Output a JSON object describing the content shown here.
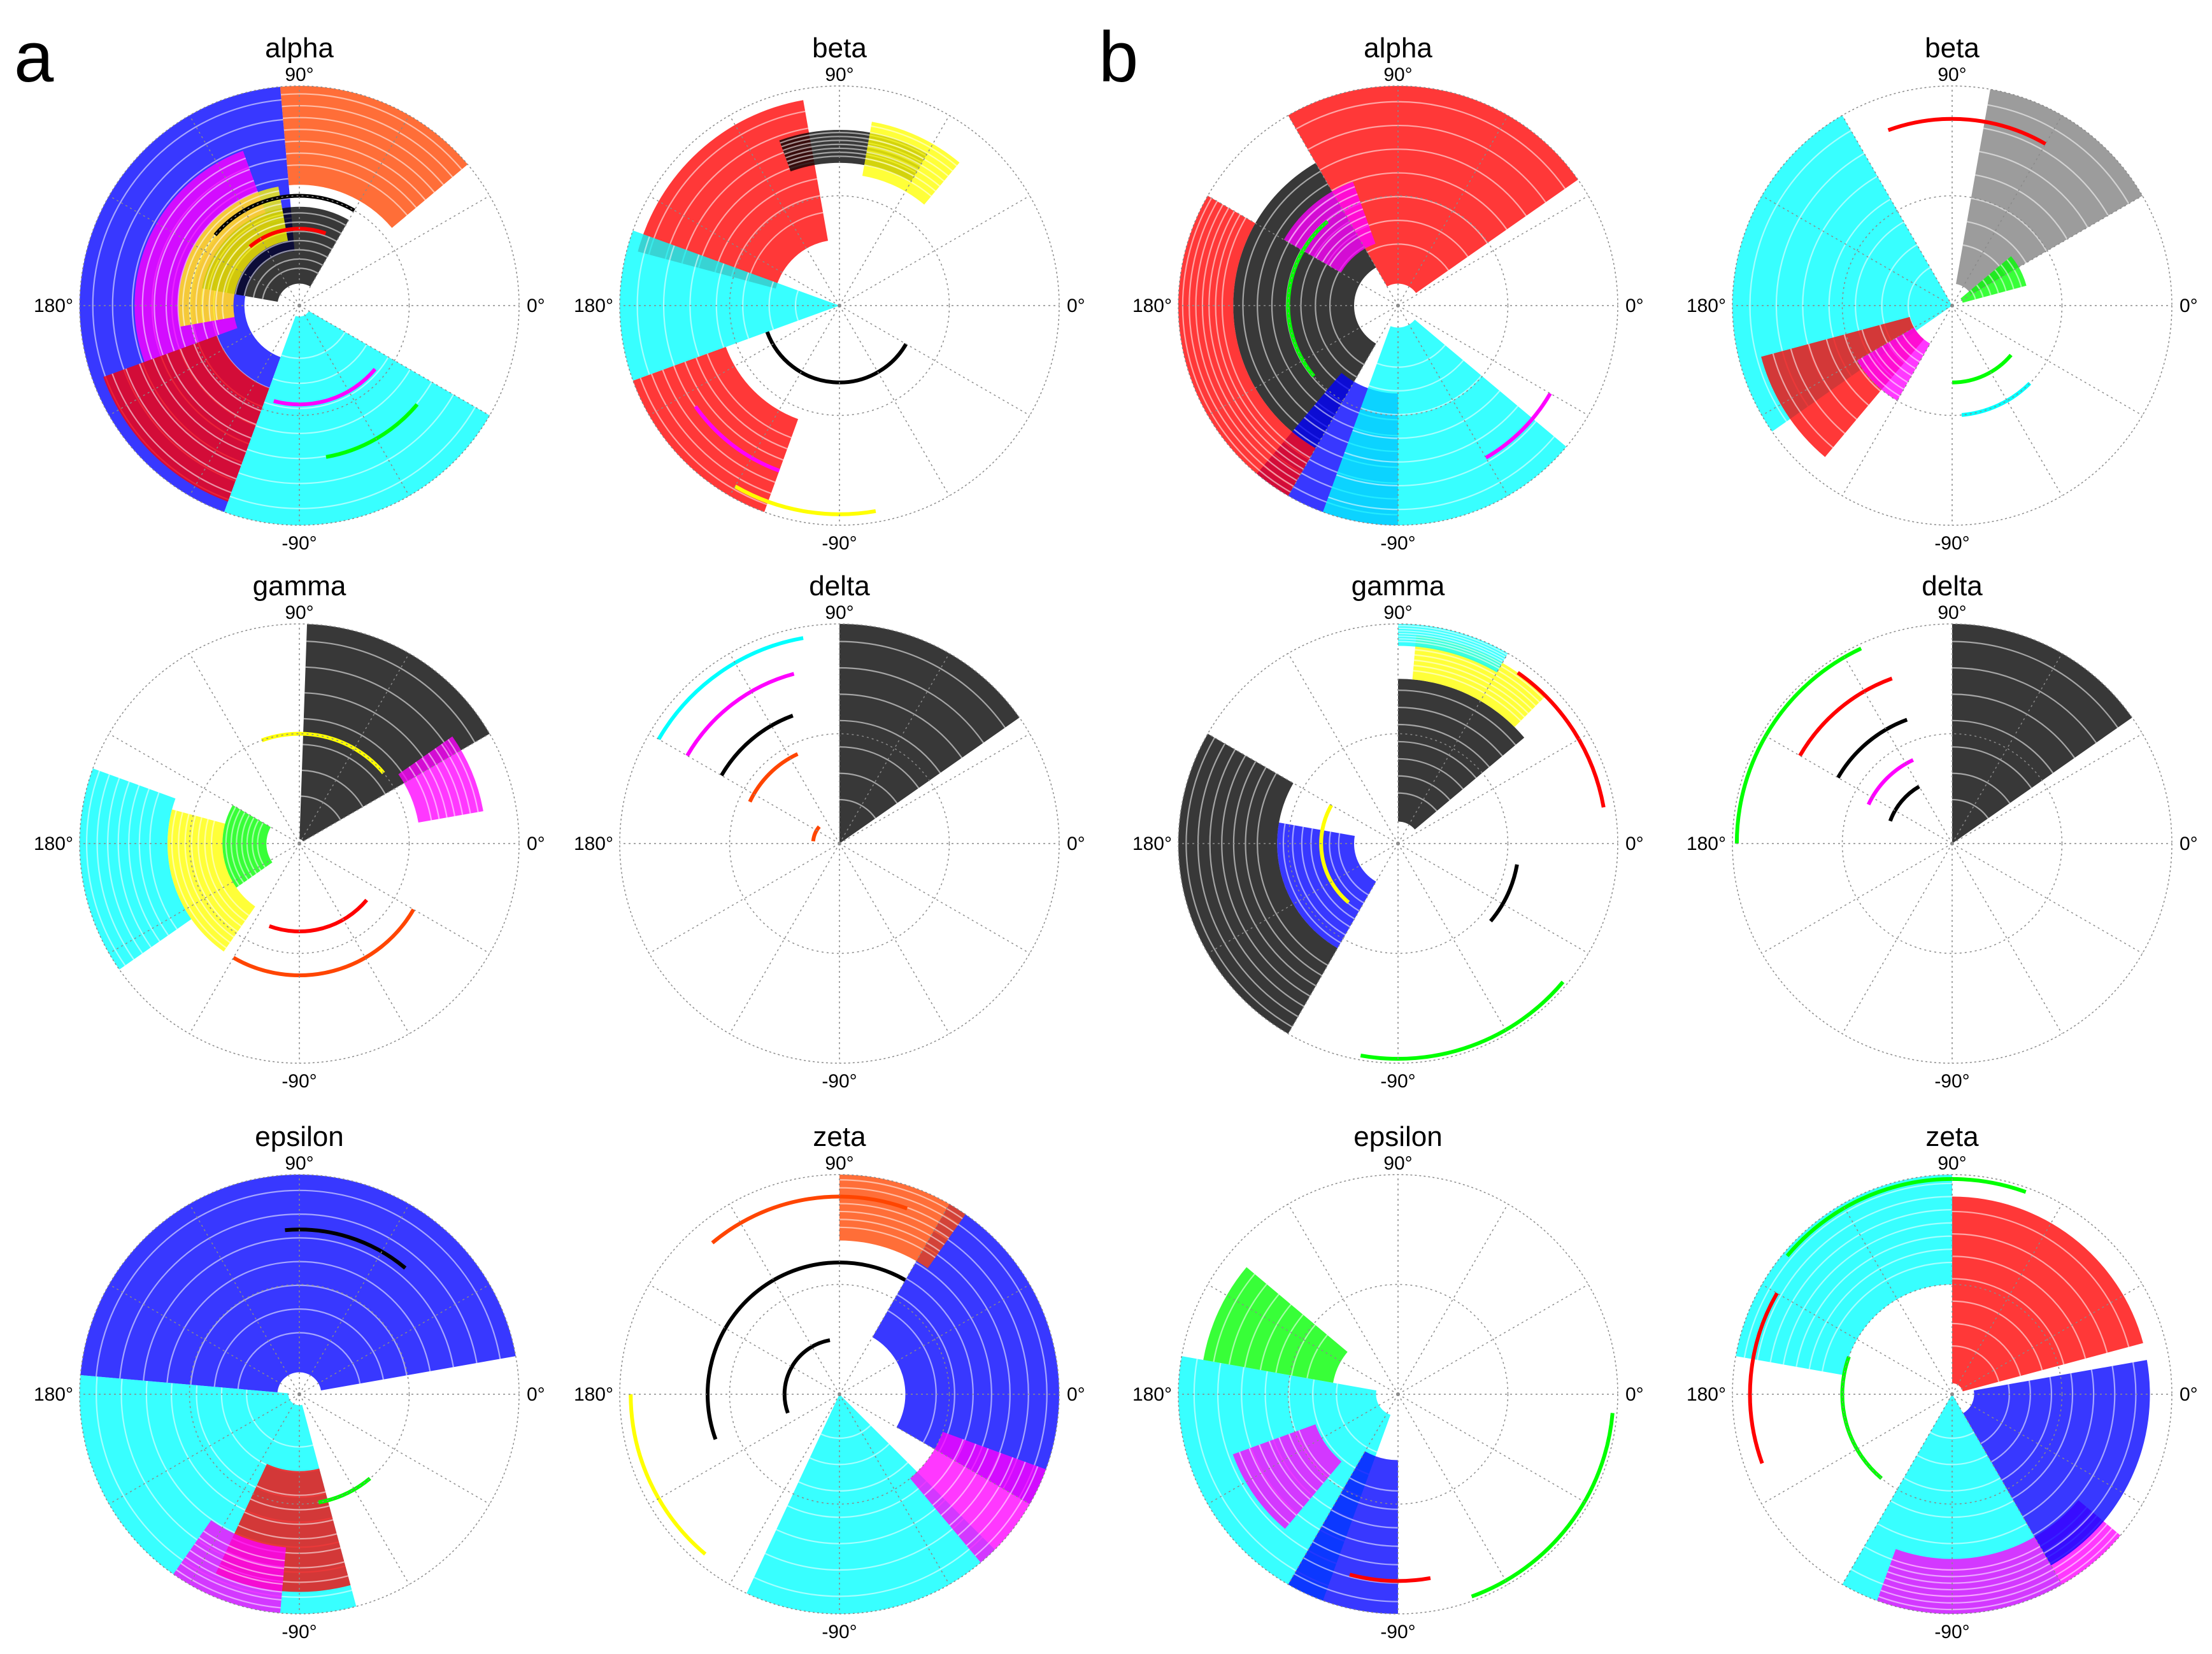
{
  "panels": [
    {
      "letter": "a"
    },
    {
      "letter": "b"
    }
  ],
  "angle_labels": {
    "top": "90°",
    "left": "180°",
    "right": "0°",
    "bottom": "-90°"
  },
  "chart_data": [
    {
      "type": "scatter",
      "title": "alpha",
      "projection": "polar",
      "grid": true,
      "angle_ticks": [
        "90°",
        "180°",
        "0°",
        "-90°"
      ],
      "sectors": [
        {
          "color": "#0000ff",
          "start": 95,
          "end": 250,
          "r_min": 0.25,
          "r_max": 1.0
        },
        {
          "color": "#ff4500",
          "start": 40,
          "end": 95,
          "r_min": 0.55,
          "r_max": 1.0
        },
        {
          "color": "#ff00ff",
          "start": 110,
          "end": 200,
          "r_min": 0.3,
          "r_max": 0.75
        },
        {
          "color": "#00ffff",
          "start": 250,
          "end": 330,
          "r_min": 0.05,
          "r_max": 1.0
        },
        {
          "color": "#000000",
          "start": 60,
          "end": 170,
          "r_min": 0.1,
          "r_max": 0.45
        },
        {
          "color": "#ffff00",
          "start": 100,
          "end": 190,
          "r_min": 0.3,
          "r_max": 0.55
        },
        {
          "color": "#ff0000",
          "start": 200,
          "end": 250,
          "r_min": 0.4,
          "r_max": 0.95
        }
      ],
      "arcs": [
        {
          "color": "#000000",
          "start": 60,
          "end": 140,
          "r": 0.5
        },
        {
          "color": "#ff0000",
          "start": 70,
          "end": 130,
          "r": 0.35
        },
        {
          "color": "#ff00ff",
          "start": 255,
          "end": 320,
          "r": 0.45
        },
        {
          "color": "#00ff00",
          "start": 280,
          "end": 320,
          "r": 0.7
        }
      ]
    },
    {
      "type": "scatter",
      "title": "beta",
      "projection": "polar",
      "grid": true,
      "angle_ticks": [
        "90°",
        "180°",
        "0°",
        "-90°"
      ],
      "sectors": [
        {
          "color": "#ff0000",
          "start": 100,
          "end": 165,
          "r_min": 0.3,
          "r_max": 0.95
        },
        {
          "color": "#00ffff",
          "start": 160,
          "end": 200,
          "r_min": 0.0,
          "r_max": 1.0
        },
        {
          "color": "#000000",
          "start": 60,
          "end": 110,
          "r_min": 0.65,
          "r_max": 0.8
        },
        {
          "color": "#ffff00",
          "start": 50,
          "end": 80,
          "r_min": 0.6,
          "r_max": 0.85
        },
        {
          "color": "#ff0000",
          "start": 200,
          "end": 250,
          "r_min": 0.55,
          "r_max": 1.0
        }
      ],
      "arcs": [
        {
          "color": "#000000",
          "start": 200,
          "end": 330,
          "r": 0.35
        },
        {
          "color": "#ff00ff",
          "start": 215,
          "end": 250,
          "r": 0.8
        },
        {
          "color": "#ffff00",
          "start": 240,
          "end": 280,
          "r": 0.95
        }
      ]
    },
    {
      "type": "scatter",
      "title": "gamma",
      "projection": "polar",
      "grid": true,
      "angle_ticks": [
        "90°",
        "180°",
        "0°",
        "-90°"
      ],
      "sectors": [
        {
          "color": "#000000",
          "start": 30,
          "end": 88,
          "r_min": 0.02,
          "r_max": 1.0
        },
        {
          "color": "#00ffff",
          "start": 160,
          "end": 215,
          "r_min": 0.6,
          "r_max": 1.0
        },
        {
          "color": "#ffff00",
          "start": 165,
          "end": 235,
          "r_min": 0.35,
          "r_max": 0.6
        },
        {
          "color": "#00ff00",
          "start": 150,
          "end": 215,
          "r_min": 0.15,
          "r_max": 0.35
        },
        {
          "color": "#ff00ff",
          "start": 10,
          "end": 35,
          "r_min": 0.55,
          "r_max": 0.85
        }
      ],
      "arcs": [
        {
          "color": "#ffff00",
          "start": 40,
          "end": 110,
          "r": 0.5
        },
        {
          "color": "#ff4500",
          "start": 240,
          "end": 330,
          "r": 0.6
        },
        {
          "color": "#ff0000",
          "start": 250,
          "end": 320,
          "r": 0.4
        }
      ]
    },
    {
      "type": "scatter",
      "title": "delta",
      "projection": "polar",
      "grid": true,
      "angle_ticks": [
        "90°",
        "180°",
        "0°",
        "-90°"
      ],
      "sectors": [
        {
          "color": "#000000",
          "start": 35,
          "end": 90,
          "r_min": 0.0,
          "r_max": 1.0
        }
      ],
      "arcs": [
        {
          "color": "#00ffff",
          "start": 100,
          "end": 150,
          "r": 0.95
        },
        {
          "color": "#ff00ff",
          "start": 105,
          "end": 150,
          "r": 0.8
        },
        {
          "color": "#000000",
          "start": 110,
          "end": 150,
          "r": 0.62
        },
        {
          "color": "#ff4500",
          "start": 115,
          "end": 155,
          "r": 0.45
        },
        {
          "color": "#ff4500",
          "start": 140,
          "end": 175,
          "r": 0.12
        }
      ]
    },
    {
      "type": "scatter",
      "title": "epsilon",
      "projection": "polar",
      "grid": true,
      "angle_ticks": [
        "90°",
        "180°",
        "0°",
        "-90°"
      ],
      "sectors": [
        {
          "color": "#0000ff",
          "start": 10,
          "end": 175,
          "r_min": 0.1,
          "r_max": 1.0
        },
        {
          "color": "#00ffff",
          "start": 175,
          "end": 285,
          "r_min": 0.05,
          "r_max": 1.0
        },
        {
          "color": "#ff0000",
          "start": 245,
          "end": 285,
          "r_min": 0.35,
          "r_max": 0.9
        },
        {
          "color": "#ff00ff",
          "start": 235,
          "end": 265,
          "r_min": 0.7,
          "r_max": 1.0
        }
      ],
      "arcs": [
        {
          "color": "#000000",
          "start": 50,
          "end": 95,
          "r": 0.75
        },
        {
          "color": "#00ff00",
          "start": 280,
          "end": 310,
          "r": 0.5
        }
      ]
    },
    {
      "type": "scatter",
      "title": "zeta",
      "projection": "polar",
      "grid": true,
      "angle_ticks": [
        "90°",
        "180°",
        "0°",
        "-90°"
      ],
      "sectors": [
        {
          "color": "#0000ff",
          "start": -30,
          "end": 60,
          "r_min": 0.3,
          "r_max": 1.0
        },
        {
          "color": "#00ffff",
          "start": 245,
          "end": 315,
          "r_min": 0.0,
          "r_max": 1.0
        },
        {
          "color": "#ff4500",
          "start": 55,
          "end": 90,
          "r_min": 0.7,
          "r_max": 1.0
        },
        {
          "color": "#ff00ff",
          "start": 310,
          "end": 340,
          "r_min": 0.5,
          "r_max": 1.0
        }
      ],
      "arcs": [
        {
          "color": "#000000",
          "start": 60,
          "end": 200,
          "r": 0.6
        },
        {
          "color": "#ff4500",
          "start": 70,
          "end": 130,
          "r": 0.9
        },
        {
          "color": "#000000",
          "start": 100,
          "end": 200,
          "r": 0.25
        },
        {
          "color": "#ffff00",
          "start": 180,
          "end": 230,
          "r": 0.95
        }
      ]
    },
    {
      "type": "scatter",
      "title": "alpha",
      "projection": "polar",
      "grid": true,
      "angle_ticks": [
        "90°",
        "180°",
        "0°",
        "-90°"
      ],
      "sectors": [
        {
          "color": "#ff0000",
          "start": 35,
          "end": 120,
          "r_min": 0.1,
          "r_max": 1.0
        },
        {
          "color": "#000000",
          "start": 120,
          "end": 240,
          "r_min": 0.2,
          "r_max": 0.75
        },
        {
          "color": "#ff00ff",
          "start": 110,
          "end": 150,
          "r_min": 0.3,
          "r_max": 0.6
        },
        {
          "color": "#0000ff",
          "start": 230,
          "end": 270,
          "r_min": 0.4,
          "r_max": 1.0
        },
        {
          "color": "#00ffff",
          "start": 250,
          "end": 320,
          "r_min": 0.1,
          "r_max": 1.0
        },
        {
          "color": "#ff0000",
          "start": 150,
          "end": 240,
          "r_min": 0.75,
          "r_max": 1.0
        }
      ],
      "arcs": [
        {
          "color": "#00ff00",
          "start": 130,
          "end": 220,
          "r": 0.5
        },
        {
          "color": "#ff00ff",
          "start": 300,
          "end": 330,
          "r": 0.8
        }
      ]
    },
    {
      "type": "scatter",
      "title": "beta",
      "projection": "polar",
      "grid": true,
      "angle_ticks": [
        "90°",
        "180°",
        "0°",
        "-90°"
      ],
      "sectors": [
        {
          "color": "#00ffff",
          "start": 120,
          "end": 215,
          "r_min": 0.0,
          "r_max": 1.0
        },
        {
          "color": "#808080",
          "start": 30,
          "end": 80,
          "r_min": 0.1,
          "r_max": 1.0
        },
        {
          "color": "#ff0000",
          "start": 195,
          "end": 230,
          "r_min": 0.2,
          "r_max": 0.9
        },
        {
          "color": "#00ff00",
          "start": 15,
          "end": 40,
          "r_min": 0.05,
          "r_max": 0.35
        },
        {
          "color": "#ff00ff",
          "start": 210,
          "end": 240,
          "r_min": 0.2,
          "r_max": 0.5
        }
      ],
      "arcs": [
        {
          "color": "#ff0000",
          "start": 60,
          "end": 110,
          "r": 0.85
        },
        {
          "color": "#00ff00",
          "start": 270,
          "end": 320,
          "r": 0.35
        },
        {
          "color": "#00ffff",
          "start": 275,
          "end": 315,
          "r": 0.5
        }
      ]
    },
    {
      "type": "scatter",
      "title": "gamma",
      "projection": "polar",
      "grid": true,
      "angle_ticks": [
        "90°",
        "180°",
        "0°",
        "-90°"
      ],
      "sectors": [
        {
          "color": "#000000",
          "start": 40,
          "end": 90,
          "r_min": 0.1,
          "r_max": 0.75
        },
        {
          "color": "#000000",
          "start": 150,
          "end": 240,
          "r_min": 0.55,
          "r_max": 1.0
        },
        {
          "color": "#0000ff",
          "start": 170,
          "end": 240,
          "r_min": 0.2,
          "r_max": 0.55
        },
        {
          "color": "#ffff00",
          "start": 45,
          "end": 85,
          "r_min": 0.75,
          "r_max": 0.95
        },
        {
          "color": "#00ffff",
          "start": 60,
          "end": 90,
          "r_min": 0.9,
          "r_max": 1.0
        }
      ],
      "arcs": [
        {
          "color": "#ffff00",
          "start": 150,
          "end": 230,
          "r": 0.35
        },
        {
          "color": "#ff0000",
          "start": 10,
          "end": 55,
          "r": 0.95
        },
        {
          "color": "#00ff00",
          "start": 260,
          "end": 320,
          "r": 0.98
        },
        {
          "color": "#000000",
          "start": 320,
          "end": 350,
          "r": 0.55
        }
      ]
    },
    {
      "type": "scatter",
      "title": "delta",
      "projection": "polar",
      "grid": true,
      "angle_ticks": [
        "90°",
        "180°",
        "0°",
        "-90°"
      ],
      "sectors": [
        {
          "color": "#000000",
          "start": 35,
          "end": 90,
          "r_min": 0.0,
          "r_max": 1.0
        }
      ],
      "arcs": [
        {
          "color": "#00ff00",
          "start": 115,
          "end": 180,
          "r": 0.98
        },
        {
          "color": "#ff0000",
          "start": 110,
          "end": 150,
          "r": 0.8
        },
        {
          "color": "#000000",
          "start": 110,
          "end": 150,
          "r": 0.6
        },
        {
          "color": "#ff00ff",
          "start": 115,
          "end": 155,
          "r": 0.42
        },
        {
          "color": "#000000",
          "start": 120,
          "end": 160,
          "r": 0.3
        }
      ]
    },
    {
      "type": "scatter",
      "title": "epsilon",
      "projection": "polar",
      "grid": true,
      "angle_ticks": [
        "90°",
        "180°",
        "0°",
        "-90°"
      ],
      "sectors": [
        {
          "color": "#00ffff",
          "start": 170,
          "end": 250,
          "r_min": 0.1,
          "r_max": 1.0
        },
        {
          "color": "#0000ff",
          "start": 240,
          "end": 270,
          "r_min": 0.3,
          "r_max": 1.0
        },
        {
          "color": "#ff00ff",
          "start": 200,
          "end": 230,
          "r_min": 0.4,
          "r_max": 0.8
        },
        {
          "color": "#00ff00",
          "start": 140,
          "end": 170,
          "r_min": 0.3,
          "r_max": 0.9
        }
      ],
      "arcs": [
        {
          "color": "#00ff00",
          "start": 290,
          "end": 355,
          "r": 0.98
        },
        {
          "color": "#ff0000",
          "start": 255,
          "end": 280,
          "r": 0.85
        }
      ]
    },
    {
      "type": "scatter",
      "title": "zeta",
      "projection": "polar",
      "grid": true,
      "angle_ticks": [
        "90°",
        "180°",
        "0°",
        "-90°"
      ],
      "sectors": [
        {
          "color": "#ff0000",
          "start": 15,
          "end": 90,
          "r_min": 0.05,
          "r_max": 0.9
        },
        {
          "color": "#00ffff",
          "start": 90,
          "end": 170,
          "r_min": 0.5,
          "r_max": 1.0
        },
        {
          "color": "#00ffff",
          "start": 240,
          "end": 300,
          "r_min": 0.0,
          "r_max": 1.0
        },
        {
          "color": "#ff00ff",
          "start": 250,
          "end": 320,
          "r_min": 0.75,
          "r_max": 1.0
        },
        {
          "color": "#0000ff",
          "start": -60,
          "end": 10,
          "r_min": 0.1,
          "r_max": 0.9
        }
      ],
      "arcs": [
        {
          "color": "#00ff00",
          "start": 70,
          "end": 140,
          "r": 0.98
        },
        {
          "color": "#ff0000",
          "start": 150,
          "end": 200,
          "r": 0.92
        },
        {
          "color": "#00ff00",
          "start": 160,
          "end": 230,
          "r": 0.5
        }
      ]
    }
  ]
}
